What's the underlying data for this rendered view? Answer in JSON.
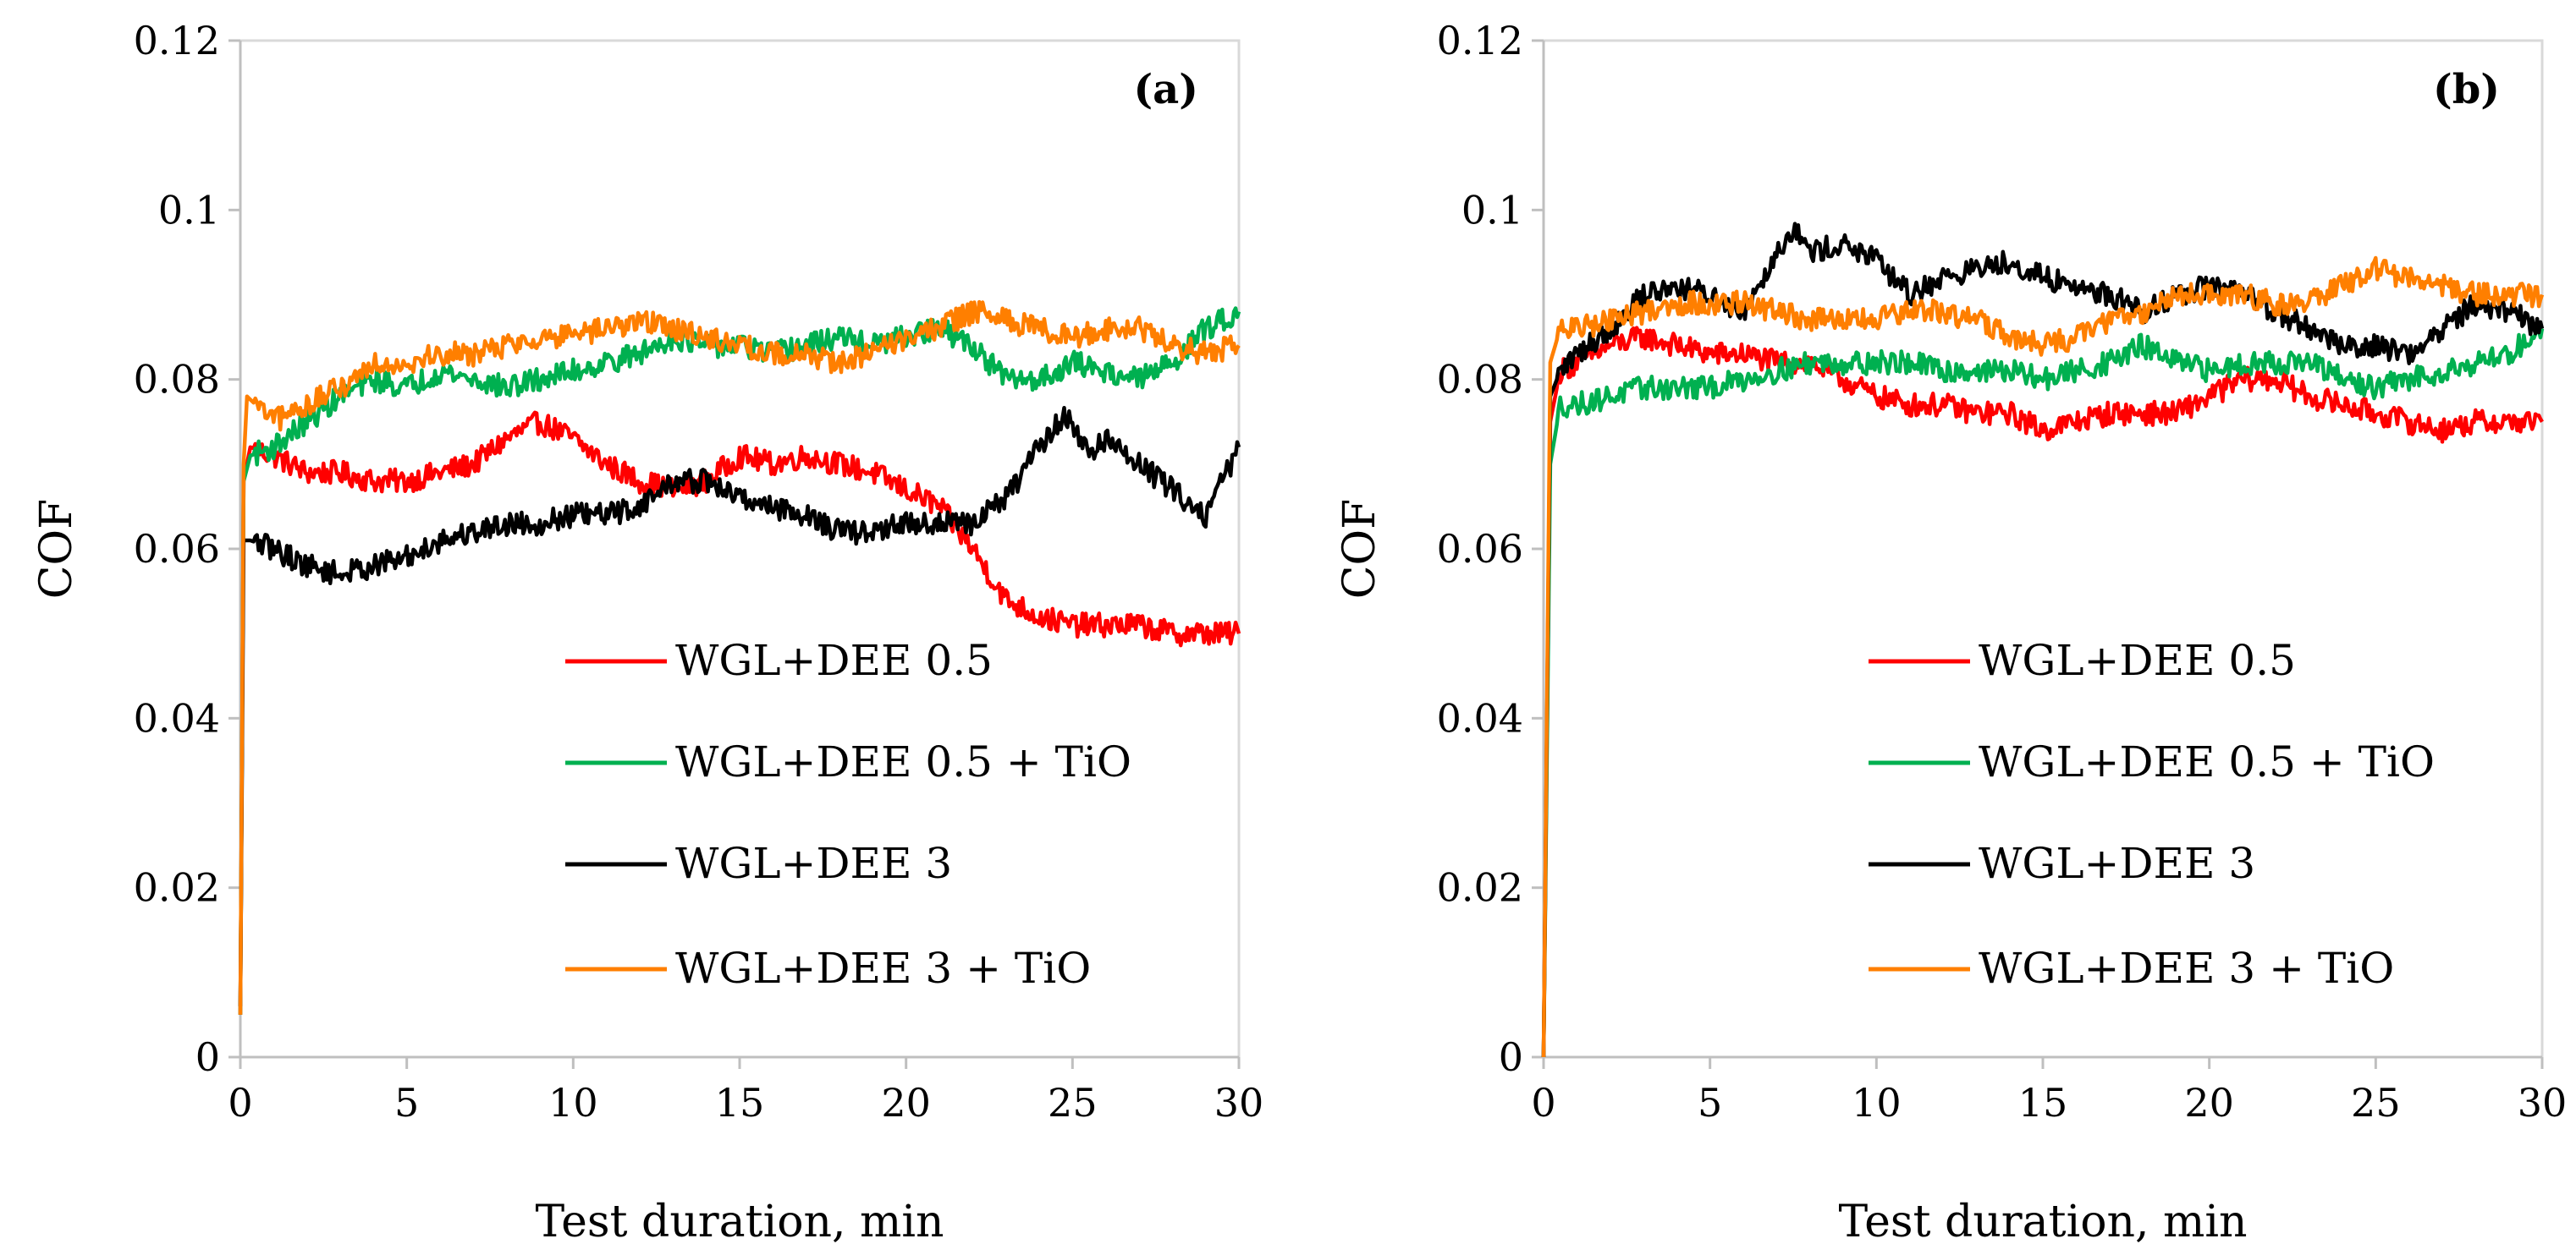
{
  "chart_data": [
    {
      "type": "line",
      "panel_label": "(a)",
      "xlabel": "Test duration, min",
      "ylabel": "COF",
      "xlim": [
        0,
        30
      ],
      "ylim": [
        0,
        0.12
      ],
      "x_ticks": [
        "0",
        "5",
        "10",
        "15",
        "20",
        "25",
        "30"
      ],
      "y_ticks": [
        "0",
        "0.02",
        "0.04",
        "0.06",
        "0.08",
        "0.1",
        "0.12"
      ],
      "grid": false,
      "legend_position": "lower-right",
      "series": [
        {
          "name": "WGL+DEE 0.5",
          "color": "#ff0000",
          "points": [
            [
              0,
              0.005
            ],
            [
              0.1,
              0.068
            ],
            [
              0.3,
              0.072
            ],
            [
              1,
              0.071
            ],
            [
              2,
              0.069
            ],
            [
              3,
              0.069
            ],
            [
              4,
              0.068
            ],
            [
              5,
              0.068
            ],
            [
              6,
              0.069
            ],
            [
              7,
              0.07
            ],
            [
              8,
              0.073
            ],
            [
              9,
              0.075
            ],
            [
              10,
              0.073
            ],
            [
              11,
              0.07
            ],
            [
              12,
              0.068
            ],
            [
              13,
              0.067
            ],
            [
              14,
              0.068
            ],
            [
              15,
              0.071
            ],
            [
              16,
              0.07
            ],
            [
              17,
              0.071
            ],
            [
              18,
              0.07
            ],
            [
              19,
              0.069
            ],
            [
              20,
              0.067
            ],
            [
              21,
              0.065
            ],
            [
              22,
              0.06
            ],
            [
              23,
              0.054
            ],
            [
              24,
              0.052
            ],
            [
              25,
              0.051
            ],
            [
              26,
              0.051
            ],
            [
              27,
              0.051
            ],
            [
              28,
              0.05
            ],
            [
              29,
              0.05
            ],
            [
              30,
              0.05
            ]
          ]
        },
        {
          "name": "WGL+DEE 0.5 + TiO",
          "color": "#00b050",
          "points": [
            [
              0,
              0.005
            ],
            [
              0.1,
              0.068
            ],
            [
              0.3,
              0.071
            ],
            [
              1,
              0.072
            ],
            [
              2,
              0.075
            ],
            [
              3,
              0.078
            ],
            [
              4,
              0.08
            ],
            [
              5,
              0.079
            ],
            [
              6,
              0.081
            ],
            [
              7,
              0.08
            ],
            [
              8,
              0.079
            ],
            [
              9,
              0.08
            ],
            [
              10,
              0.081
            ],
            [
              11,
              0.082
            ],
            [
              12,
              0.083
            ],
            [
              13,
              0.085
            ],
            [
              14,
              0.084
            ],
            [
              15,
              0.084
            ],
            [
              16,
              0.083
            ],
            [
              17,
              0.084
            ],
            [
              18,
              0.085
            ],
            [
              19,
              0.084
            ],
            [
              20,
              0.085
            ],
            [
              21,
              0.086
            ],
            [
              22,
              0.084
            ],
            [
              23,
              0.08
            ],
            [
              24,
              0.08
            ],
            [
              25,
              0.082
            ],
            [
              26,
              0.081
            ],
            [
              27,
              0.08
            ],
            [
              28,
              0.082
            ],
            [
              29,
              0.086
            ],
            [
              30,
              0.088
            ]
          ]
        },
        {
          "name": "WGL+DEE 3",
          "color": "#000000",
          "points": [
            [
              0,
              0.006
            ],
            [
              0.1,
              0.061
            ],
            [
              0.3,
              0.061
            ],
            [
              1,
              0.06
            ],
            [
              2,
              0.058
            ],
            [
              3,
              0.057
            ],
            [
              4,
              0.058
            ],
            [
              5,
              0.059
            ],
            [
              6,
              0.061
            ],
            [
              7,
              0.062
            ],
            [
              8,
              0.063
            ],
            [
              9,
              0.063
            ],
            [
              10,
              0.064
            ],
            [
              11,
              0.064
            ],
            [
              12,
              0.065
            ],
            [
              13,
              0.068
            ],
            [
              14,
              0.068
            ],
            [
              15,
              0.066
            ],
            [
              16,
              0.065
            ],
            [
              17,
              0.064
            ],
            [
              18,
              0.062
            ],
            [
              19,
              0.062
            ],
            [
              20,
              0.063
            ],
            [
              21,
              0.063
            ],
            [
              22,
              0.063
            ],
            [
              23,
              0.066
            ],
            [
              24,
              0.072
            ],
            [
              24.8,
              0.076
            ],
            [
              25.5,
              0.071
            ],
            [
              26,
              0.073
            ],
            [
              27,
              0.07
            ],
            [
              28,
              0.067
            ],
            [
              29,
              0.064
            ],
            [
              30,
              0.072
            ]
          ]
        },
        {
          "name": "WGL+DEE 3 + TiO",
          "color": "#ff7f00",
          "points": [
            [
              0,
              0.005
            ],
            [
              0.1,
              0.07
            ],
            [
              0.2,
              0.078
            ],
            [
              1,
              0.075
            ],
            [
              2,
              0.077
            ],
            [
              3,
              0.079
            ],
            [
              4,
              0.082
            ],
            [
              5,
              0.082
            ],
            [
              6,
              0.083
            ],
            [
              7,
              0.083
            ],
            [
              8,
              0.084
            ],
            [
              9,
              0.085
            ],
            [
              10,
              0.085
            ],
            [
              11,
              0.086
            ],
            [
              12,
              0.087
            ],
            [
              13,
              0.086
            ],
            [
              14,
              0.085
            ],
            [
              15,
              0.084
            ],
            [
              16,
              0.083
            ],
            [
              17,
              0.083
            ],
            [
              18,
              0.082
            ],
            [
              19,
              0.083
            ],
            [
              20,
              0.085
            ],
            [
              21,
              0.086
            ],
            [
              22,
              0.088
            ],
            [
              23,
              0.087
            ],
            [
              24,
              0.086
            ],
            [
              25,
              0.085
            ],
            [
              26,
              0.086
            ],
            [
              27,
              0.086
            ],
            [
              28,
              0.084
            ],
            [
              29,
              0.083
            ],
            [
              30,
              0.084
            ]
          ]
        }
      ]
    },
    {
      "type": "line",
      "panel_label": "(b)",
      "xlabel": "Test duration, min",
      "ylabel": "COF",
      "xlim": [
        0,
        30
      ],
      "ylim": [
        0,
        0.12
      ],
      "x_ticks": [
        "0",
        "5",
        "10",
        "15",
        "20",
        "25",
        "30"
      ],
      "y_ticks": [
        "0",
        "0.02",
        "0.04",
        "0.06",
        "0.08",
        "0.1",
        "0.12"
      ],
      "grid": false,
      "legend_position": "lower-right",
      "series": [
        {
          "name": "WGL+DEE 0.5",
          "color": "#ff0000",
          "points": [
            [
              0,
              0.0
            ],
            [
              0.2,
              0.075
            ],
            [
              0.5,
              0.081
            ],
            [
              1,
              0.082
            ],
            [
              2,
              0.084
            ],
            [
              3,
              0.085
            ],
            [
              4,
              0.084
            ],
            [
              5,
              0.083
            ],
            [
              6,
              0.083
            ],
            [
              7,
              0.082
            ],
            [
              8,
              0.082
            ],
            [
              9,
              0.08
            ],
            [
              10,
              0.078
            ],
            [
              11,
              0.077
            ],
            [
              12,
              0.077
            ],
            [
              13,
              0.076
            ],
            [
              14,
              0.076
            ],
            [
              15,
              0.074
            ],
            [
              16,
              0.075
            ],
            [
              17,
              0.076
            ],
            [
              18,
              0.076
            ],
            [
              19,
              0.076
            ],
            [
              20,
              0.078
            ],
            [
              21,
              0.08
            ],
            [
              22,
              0.08
            ],
            [
              23,
              0.078
            ],
            [
              24,
              0.077
            ],
            [
              25,
              0.076
            ],
            [
              26,
              0.075
            ],
            [
              27,
              0.074
            ],
            [
              28,
              0.075
            ],
            [
              29,
              0.075
            ],
            [
              30,
              0.075
            ]
          ]
        },
        {
          "name": "WGL+DEE 0.5 + TiO",
          "color": "#00b050",
          "points": [
            [
              0,
              0.0
            ],
            [
              0.2,
              0.07
            ],
            [
              0.5,
              0.077
            ],
            [
              1,
              0.077
            ],
            [
              2,
              0.078
            ],
            [
              3,
              0.079
            ],
            [
              4,
              0.079
            ],
            [
              5,
              0.079
            ],
            [
              6,
              0.08
            ],
            [
              7,
              0.081
            ],
            [
              8,
              0.082
            ],
            [
              9,
              0.082
            ],
            [
              10,
              0.082
            ],
            [
              11,
              0.082
            ],
            [
              12,
              0.081
            ],
            [
              13,
              0.081
            ],
            [
              14,
              0.081
            ],
            [
              15,
              0.08
            ],
            [
              16,
              0.081
            ],
            [
              17,
              0.082
            ],
            [
              18,
              0.084
            ],
            [
              19,
              0.082
            ],
            [
              20,
              0.081
            ],
            [
              21,
              0.082
            ],
            [
              22,
              0.082
            ],
            [
              23,
              0.082
            ],
            [
              24,
              0.08
            ],
            [
              25,
              0.079
            ],
            [
              26,
              0.08
            ],
            [
              27,
              0.081
            ],
            [
              28,
              0.082
            ],
            [
              29,
              0.083
            ],
            [
              30,
              0.086
            ]
          ]
        },
        {
          "name": "WGL+DEE 3",
          "color": "#000000",
          "points": [
            [
              0,
              0.0
            ],
            [
              0.2,
              0.078
            ],
            [
              0.5,
              0.081
            ],
            [
              1,
              0.083
            ],
            [
              2,
              0.086
            ],
            [
              3,
              0.09
            ],
            [
              4,
              0.091
            ],
            [
              5,
              0.09
            ],
            [
              6,
              0.088
            ],
            [
              7,
              0.095
            ],
            [
              7.5,
              0.098
            ],
            [
              8,
              0.095
            ],
            [
              9,
              0.096
            ],
            [
              10,
              0.094
            ],
            [
              11,
              0.09
            ],
            [
              12,
              0.092
            ],
            [
              13,
              0.093
            ],
            [
              14,
              0.094
            ],
            [
              15,
              0.092
            ],
            [
              16,
              0.091
            ],
            [
              17,
              0.09
            ],
            [
              18,
              0.088
            ],
            [
              19,
              0.09
            ],
            [
              20,
              0.091
            ],
            [
              21,
              0.09
            ],
            [
              22,
              0.088
            ],
            [
              23,
              0.086
            ],
            [
              24,
              0.084
            ],
            [
              25,
              0.084
            ],
            [
              26,
              0.083
            ],
            [
              27,
              0.086
            ],
            [
              28,
              0.089
            ],
            [
              29,
              0.088
            ],
            [
              30,
              0.086
            ]
          ]
        },
        {
          "name": "WGL+DEE 3 + TiO",
          "color": "#ff7f00",
          "points": [
            [
              0,
              0.0
            ],
            [
              0.2,
              0.082
            ],
            [
              0.5,
              0.086
            ],
            [
              1,
              0.086
            ],
            [
              2,
              0.087
            ],
            [
              3,
              0.088
            ],
            [
              4,
              0.089
            ],
            [
              5,
              0.089
            ],
            [
              6,
              0.089
            ],
            [
              7,
              0.088
            ],
            [
              8,
              0.087
            ],
            [
              9,
              0.087
            ],
            [
              10,
              0.087
            ],
            [
              11,
              0.088
            ],
            [
              12,
              0.088
            ],
            [
              13,
              0.087
            ],
            [
              14,
              0.085
            ],
            [
              15,
              0.084
            ],
            [
              16,
              0.085
            ],
            [
              17,
              0.087
            ],
            [
              18,
              0.088
            ],
            [
              19,
              0.09
            ],
            [
              20,
              0.09
            ],
            [
              21,
              0.09
            ],
            [
              22,
              0.089
            ],
            [
              23,
              0.089
            ],
            [
              24,
              0.091
            ],
            [
              25,
              0.093
            ],
            [
              26,
              0.092
            ],
            [
              27,
              0.091
            ],
            [
              28,
              0.09
            ],
            [
              29,
              0.09
            ],
            [
              30,
              0.09
            ]
          ]
        }
      ]
    }
  ]
}
